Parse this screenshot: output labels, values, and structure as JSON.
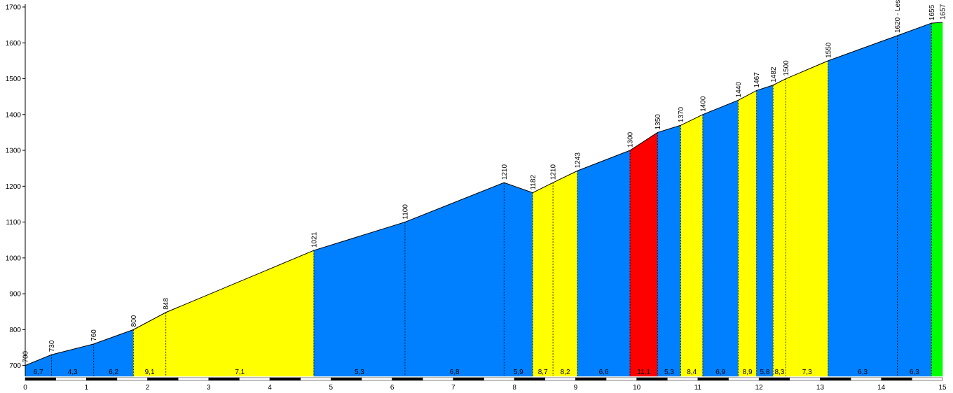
{
  "chart_data": {
    "type": "area",
    "title": "",
    "xlabel": "",
    "ylabel": "",
    "xlim": [
      0,
      15
    ],
    "ylim": [
      670,
      1700
    ],
    "x_ticks": [
      0,
      1,
      2,
      3,
      4,
      5,
      6,
      7,
      8,
      9,
      10,
      11,
      12,
      13,
      14,
      15
    ],
    "y_ticks": [
      700,
      800,
      900,
      1000,
      1100,
      1200,
      1300,
      1400,
      1500,
      1600,
      1700
    ],
    "points": [
      {
        "x": 0.0,
        "y": 700,
        "label": "700"
      },
      {
        "x": 0.43,
        "y": 730,
        "label": "730"
      },
      {
        "x": 1.12,
        "y": 760,
        "label": "760"
      },
      {
        "x": 1.77,
        "y": 800,
        "label": "800"
      },
      {
        "x": 2.3,
        "y": 848,
        "label": "848"
      },
      {
        "x": 4.72,
        "y": 1021,
        "label": "1021"
      },
      {
        "x": 6.21,
        "y": 1100,
        "label": "1100"
      },
      {
        "x": 7.83,
        "y": 1210,
        "label": "1210"
      },
      {
        "x": 8.3,
        "y": 1182,
        "label": "1182"
      },
      {
        "x": 8.63,
        "y": 1210,
        "label": "1210"
      },
      {
        "x": 9.03,
        "y": 1243,
        "label": "1243"
      },
      {
        "x": 9.89,
        "y": 1300,
        "label": "1300"
      },
      {
        "x": 10.34,
        "y": 1350,
        "label": "1350"
      },
      {
        "x": 10.72,
        "y": 1370,
        "label": "1370"
      },
      {
        "x": 11.08,
        "y": 1400,
        "label": "1400"
      },
      {
        "x": 11.66,
        "y": 1440,
        "label": "1440"
      },
      {
        "x": 11.96,
        "y": 1467,
        "label": "1467"
      },
      {
        "x": 12.23,
        "y": 1482,
        "label": "1482"
      },
      {
        "x": 12.44,
        "y": 1500,
        "label": "1500"
      },
      {
        "x": 13.13,
        "y": 1550,
        "label": "1550"
      },
      {
        "x": 14.26,
        "y": 1620,
        "label": "1620 - Les"
      },
      {
        "x": 14.82,
        "y": 1655,
        "label": "1655"
      },
      {
        "x": 15.0,
        "y": 1657,
        "label": "1657"
      }
    ],
    "segments": [
      {
        "gradient": "6,7",
        "color": "#0080ff"
      },
      {
        "gradient": "4,3",
        "color": "#0080ff"
      },
      {
        "gradient": "6,2",
        "color": "#0080ff"
      },
      {
        "gradient": "9,1",
        "color": "#ffff00"
      },
      {
        "gradient": "7,1",
        "color": "#ffff00"
      },
      {
        "gradient": "5,3",
        "color": "#0080ff"
      },
      {
        "gradient": "6,8",
        "color": "#0080ff"
      },
      {
        "gradient": "5,9",
        "color": "#0080ff"
      },
      {
        "gradient": "8,7",
        "color": "#ffff00"
      },
      {
        "gradient": "8,2",
        "color": "#ffff00"
      },
      {
        "gradient": "6,6",
        "color": "#0080ff"
      },
      {
        "gradient": "11,1",
        "color": "#ff0000"
      },
      {
        "gradient": "5,3",
        "color": "#0080ff"
      },
      {
        "gradient": "8,4",
        "color": "#ffff00"
      },
      {
        "gradient": "6,9",
        "color": "#0080ff"
      },
      {
        "gradient": "8,9",
        "color": "#ffff00"
      },
      {
        "gradient": "5,8",
        "color": "#0080ff"
      },
      {
        "gradient": "8,3",
        "color": "#ffff00"
      },
      {
        "gradient": "7,3",
        "color": "#ffff00"
      },
      {
        "gradient": "6,3",
        "color": "#0080ff"
      },
      {
        "gradient": "6,3",
        "color": "#0080ff"
      },
      {
        "gradient": "",
        "color": "#00ff00"
      }
    ]
  }
}
